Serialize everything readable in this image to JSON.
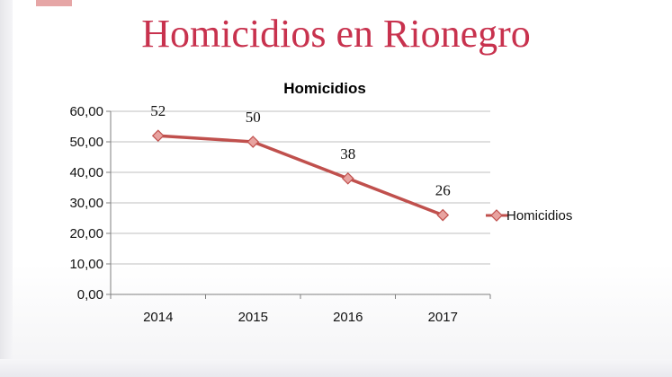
{
  "slide": {
    "title": "Homicidios en Rionegro"
  },
  "chart_data": {
    "type": "line",
    "title": "Homicidios",
    "categories": [
      "2014",
      "2015",
      "2016",
      "2017"
    ],
    "series": [
      {
        "name": "Homicidios",
        "values": [
          52,
          50,
          38,
          26
        ],
        "color": "#c0504d"
      }
    ],
    "data_labels": [
      "52",
      "50",
      "38",
      "26"
    ],
    "ylim": [
      0,
      60
    ],
    "yticks": [
      0,
      10,
      20,
      30,
      40,
      50,
      60
    ],
    "ytick_labels": [
      "0,00",
      "10,00",
      "20,00",
      "30,00",
      "40,00",
      "50,00",
      "60,00"
    ],
    "grid": true,
    "legend_position": "right",
    "marker": "diamond",
    "line_color": "#c0504d",
    "marker_fill": "#e8a3a0"
  }
}
